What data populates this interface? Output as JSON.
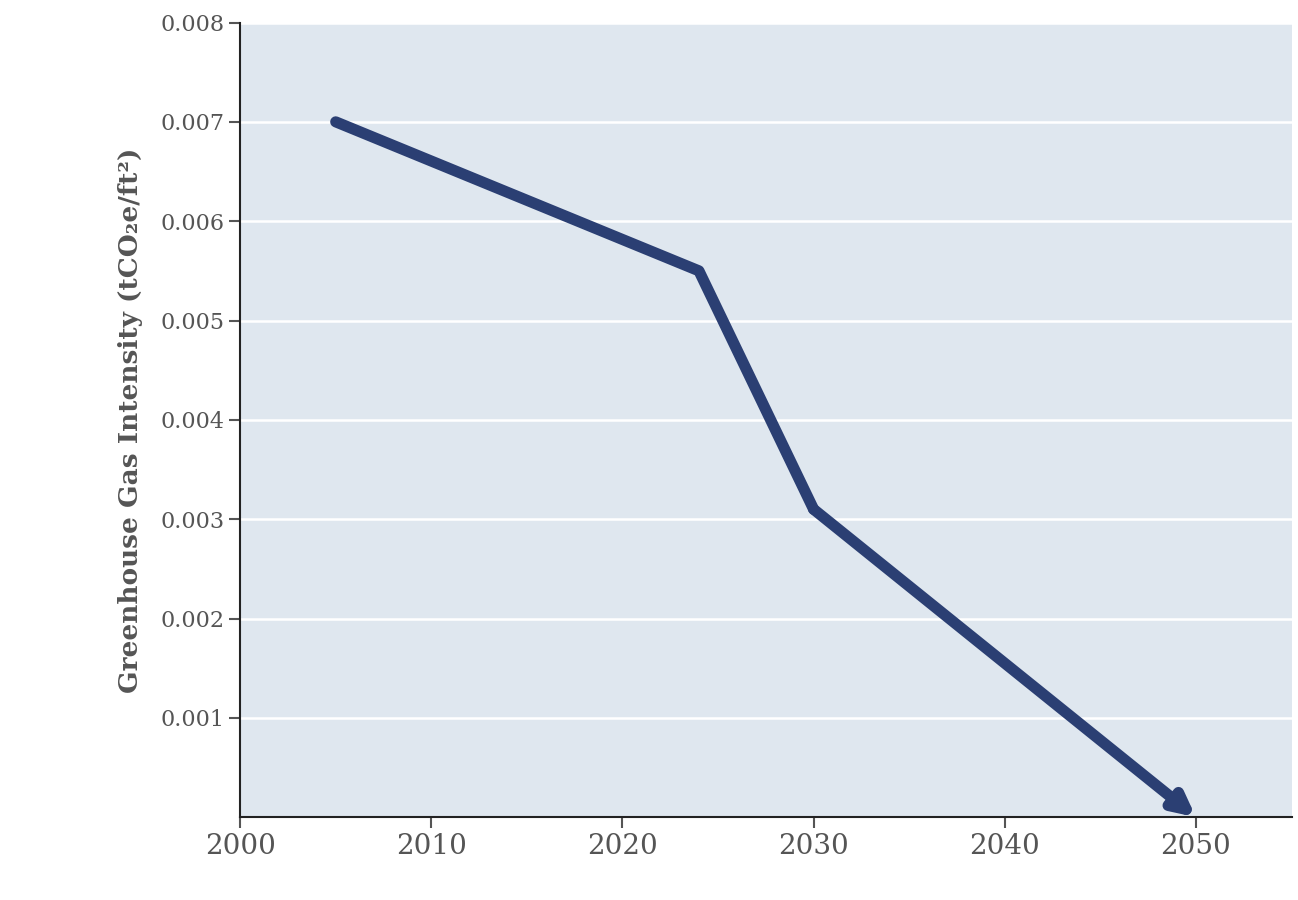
{
  "chart_data": {
    "type": "line",
    "ylabel": "Greenhouse Gas Intensity (tCO₂e/ft²)",
    "x": [
      2005,
      2024,
      2030,
      2050
    ],
    "values": [
      0.007,
      0.0055,
      0.0031,
      0.0
    ],
    "color": "#2b3f73",
    "xlim": [
      2000,
      2055
    ],
    "xticks": [
      2000,
      2010,
      2020,
      2030,
      2040,
      2050
    ],
    "ylim": [
      0,
      0.008
    ],
    "yticks": [
      0.001,
      0.002,
      0.003,
      0.004,
      0.005,
      0.006,
      0.007,
      0.008
    ],
    "grid": true
  }
}
